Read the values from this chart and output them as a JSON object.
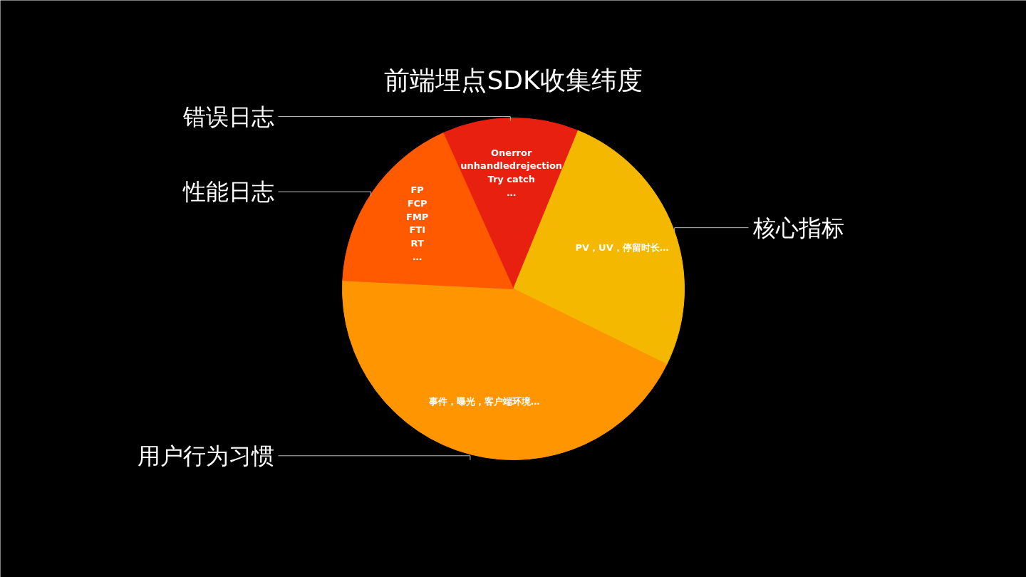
{
  "chart_data": {
    "type": "pie",
    "title": "前端埋点SDK收集纬度",
    "categories": [
      "错误日志",
      "核心指标",
      "用户行为习惯",
      "性能日志"
    ],
    "values": [
      12.9,
      26.1,
      43.5,
      17.5
    ],
    "colors": [
      "#e8200f",
      "#f5b800",
      "#ff9500",
      "#ff5a00"
    ],
    "annotations": [
      "Onerror\nunhandledrejection\nTry catch\n…",
      "PV，UV，停留时长…",
      "事件，曝光，客户端环境…",
      "FP\nFCP\nFMP\nFTI\nRT\n…"
    ]
  }
}
